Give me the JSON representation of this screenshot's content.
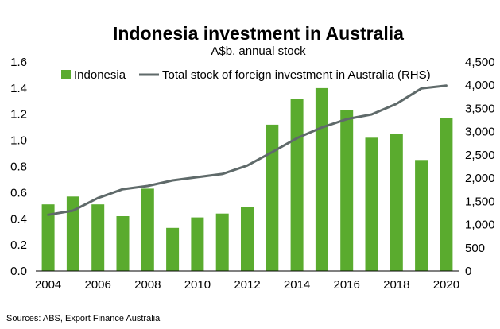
{
  "chart_data": {
    "type": "bar",
    "title": "Indonesia investment in Australia",
    "subtitle": "A$b, annual stock",
    "source": "Sources: ABS, Export Finance Australia",
    "x_ticks": [
      "2004",
      "2006",
      "2008",
      "2010",
      "2012",
      "2014",
      "2016",
      "2018",
      "2020"
    ],
    "categories": [
      "2004",
      "2005",
      "2006",
      "2007",
      "2008",
      "2009",
      "2010",
      "2011",
      "2012",
      "2013",
      "2014",
      "2015",
      "2016",
      "2017",
      "2018",
      "2019",
      "2020"
    ],
    "series": [
      {
        "name": "Indonesia",
        "type": "bar",
        "axis": "left",
        "color": "#5aab2e",
        "values": [
          0.51,
          0.57,
          0.51,
          0.42,
          0.63,
          0.33,
          0.41,
          0.44,
          0.49,
          1.12,
          1.32,
          1.4,
          1.23,
          1.02,
          1.05,
          0.85,
          1.17
        ]
      },
      {
        "name": "Total stock of foreign investment in Australia (RHS)",
        "type": "line",
        "axis": "right",
        "color": "#5f6a6a",
        "values": [
          1210,
          1300,
          1570,
          1760,
          1830,
          1950,
          2020,
          2090,
          2270,
          2560,
          2860,
          3090,
          3270,
          3370,
          3600,
          3930,
          3990
        ]
      }
    ],
    "y_left": {
      "min": 0,
      "max": 1.6,
      "ticks": [
        "0.0",
        "0.2",
        "0.4",
        "0.6",
        "0.8",
        "1.0",
        "1.2",
        "1.4",
        "1.6"
      ]
    },
    "y_right": {
      "min": 0,
      "max": 4500,
      "ticks": [
        "0",
        "500",
        "1,000",
        "1,500",
        "2,000",
        "2,500",
        "3,000",
        "3,500",
        "4,000",
        "4,500"
      ]
    },
    "grid": false,
    "legend_position": "top"
  }
}
